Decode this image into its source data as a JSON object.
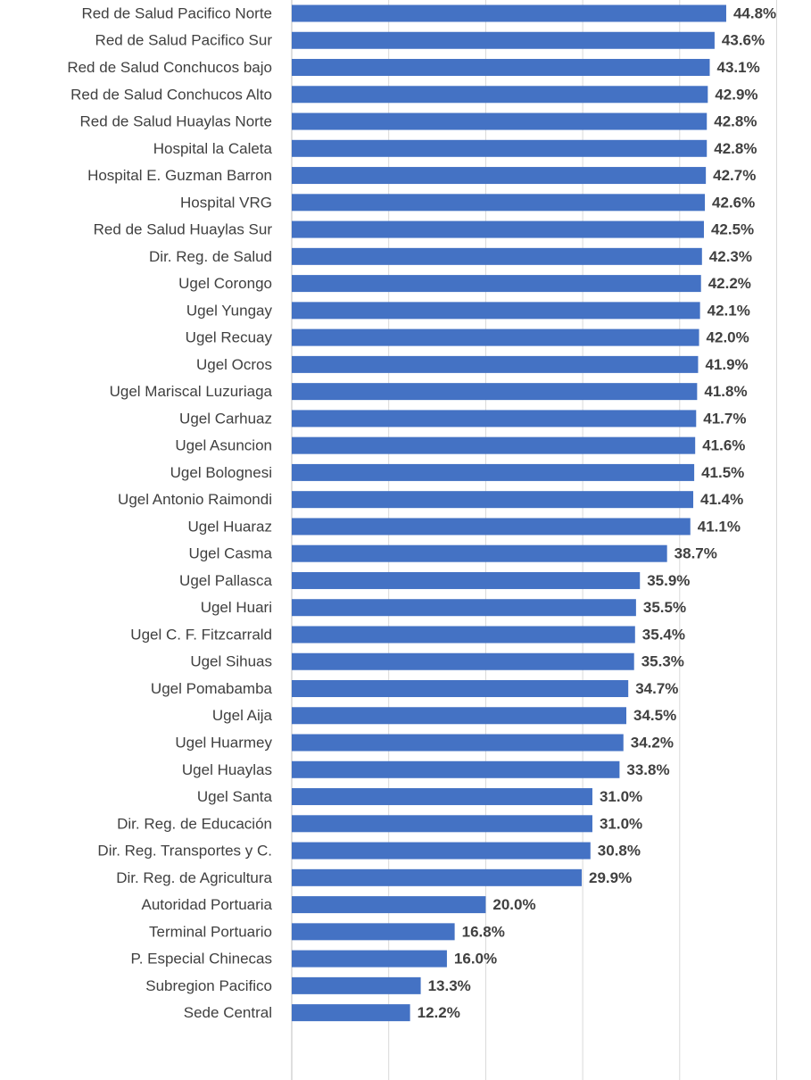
{
  "chart_data": {
    "type": "hbar",
    "categories": [
      "Red de Salud Pacifico Norte",
      "Red de Salud Pacifico Sur",
      "Red de Salud Conchucos bajo",
      "Red de Salud Conchucos Alto",
      "Red de Salud Huaylas Norte",
      "Hospital la Caleta",
      "Hospital E. Guzman Barron",
      "Hospital VRG",
      "Red de Salud Huaylas Sur",
      "Dir. Reg. de Salud",
      "Ugel Corongo",
      "Ugel Yungay",
      "Ugel Recuay",
      "Ugel Ocros",
      "Ugel Mariscal Luzuriaga",
      "Ugel Carhuaz",
      "Ugel Asuncion",
      "Ugel Bolognesi",
      "Ugel Antonio Raimondi",
      "Ugel Huaraz",
      "Ugel Casma",
      "Ugel Pallasca",
      "Ugel Huari",
      "Ugel C. F. Fitzcarrald",
      "Ugel Sihuas",
      "Ugel Pomabamba",
      "Ugel Aija",
      "Ugel Huarmey",
      "Ugel Huaylas",
      "Ugel Santa",
      "Dir. Reg. de Educación",
      "Dir. Reg. Transportes y C.",
      "Dir. Reg. de Agricultura",
      "Autoridad Portuaria",
      "Terminal Portuario",
      "P. Especial Chinecas",
      "Subregion Pacifico",
      "Sede Central"
    ],
    "values": [
      44.8,
      43.6,
      43.1,
      42.9,
      42.8,
      42.8,
      42.7,
      42.6,
      42.5,
      42.3,
      42.2,
      42.1,
      42.0,
      41.9,
      41.8,
      41.7,
      41.6,
      41.5,
      41.4,
      41.1,
      38.7,
      35.9,
      35.5,
      35.4,
      35.3,
      34.7,
      34.5,
      34.2,
      33.8,
      31.0,
      31.0,
      30.8,
      29.9,
      20.0,
      16.8,
      16.0,
      13.3,
      12.2
    ],
    "value_labels": [
      "44.8%",
      "43.6%",
      "43.1%",
      "42.9%",
      "42.8%",
      "42.8%",
      "42.7%",
      "42.6%",
      "42.5%",
      "42.3%",
      "42.2%",
      "42.1%",
      "42.0%",
      "41.9%",
      "41.8%",
      "41.7%",
      "41.6%",
      "41.5%",
      "41.4%",
      "41.1%",
      "38.7%",
      "35.9%",
      "35.5%",
      "35.4%",
      "35.3%",
      "34.7%",
      "34.5%",
      "34.2%",
      "33.8%",
      "31.0%",
      "31.0%",
      "30.8%",
      "29.9%",
      "20.0%",
      "16.8%",
      "16.0%",
      "13.3%",
      "12.2%"
    ],
    "color": "#4472c4",
    "xlim": [
      0,
      50
    ],
    "xticks": [
      0,
      10,
      20,
      30,
      40,
      50
    ],
    "grid": true
  }
}
